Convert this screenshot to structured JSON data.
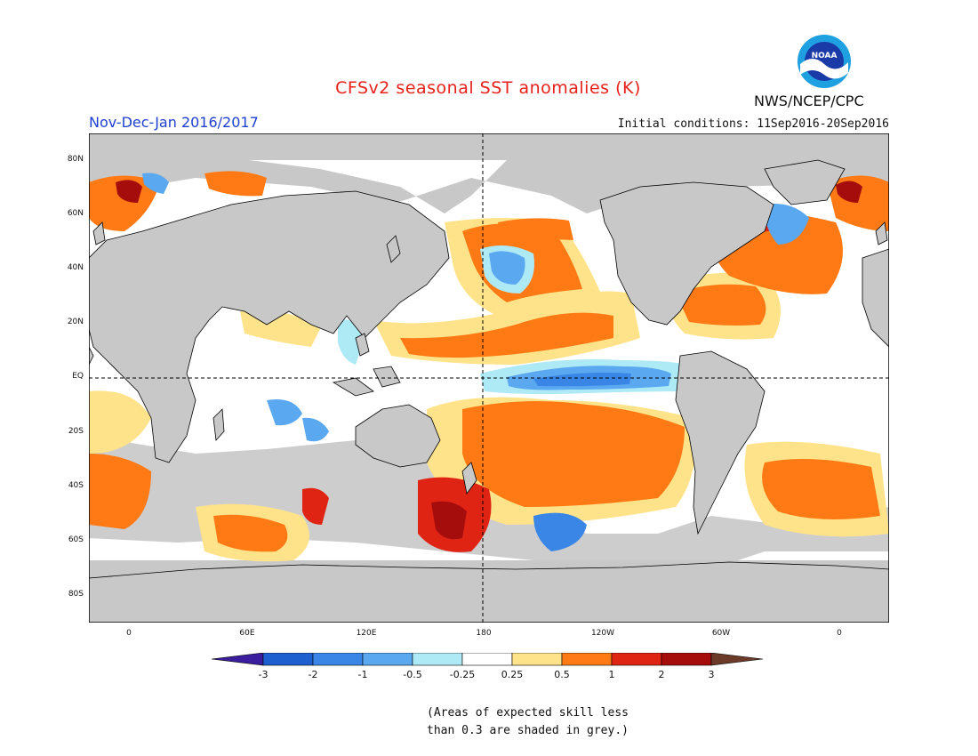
{
  "title": "CFSv2 seasonal SST anomalies (K)",
  "season": "Nov-Dec-Jan 2016/2017",
  "initial_conditions": "Initial conditions: 11Sep2016-20Sep2016",
  "agency": "NWS/NCEP/CPC",
  "logo_text": "NOAA",
  "lat_labels": [
    "80N",
    "60N",
    "40N",
    "20N",
    "EQ",
    "20S",
    "40S",
    "60S",
    "80S"
  ],
  "lon_labels": [
    "0",
    "60E",
    "120E",
    "180",
    "120W",
    "60W",
    "0"
  ],
  "colorbar": {
    "labels": [
      "-3",
      "-2",
      "-1",
      "-0.5",
      "-0.25",
      "0.25",
      "0.5",
      "1",
      "2",
      "3"
    ],
    "colors": [
      "#3a1e9e",
      "#1e5fd0",
      "#3a86e6",
      "#5aa8f0",
      "#aee9f6",
      "#ffffff",
      "#ffe38a",
      "#ff7a14",
      "#e02414",
      "#a50c0c",
      "#6b3a28"
    ]
  },
  "note_line1": "(Areas of expected skill less",
  "note_line2": "than 0.3 are shaded in grey.)",
  "colors": {
    "land": "#c8c8c8",
    "grey_mask": "#c8c8c8",
    "title": "#e8201a",
    "season": "#1f3fd0"
  }
}
